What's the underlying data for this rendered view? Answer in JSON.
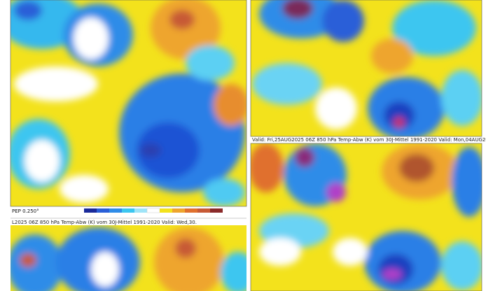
{
  "colorbar": {
    "label": "PEP 0.250°"
  },
  "panels": [
    {
      "caption": "L2025 06Z   850 hPa Temp-Abw (K) vom 30J-Mittel 1991-2020   Valid: Wed,30."
    },
    {
      "caption": "Valid: Fri,25AUG2025 06Z   850 hPa Temp-Abw (K) vom 30J-Mittel 1991-2020   Valid: Mon,04AUG2025 06Z"
    }
  ]
}
